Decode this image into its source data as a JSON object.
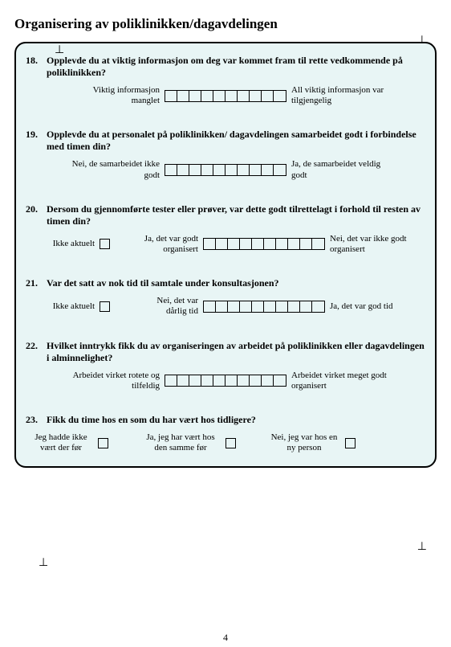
{
  "title": "Organisering av poliklinikken/dagavdelingen",
  "page_number": "4",
  "scale_cells": 10,
  "questions": {
    "q18": {
      "num": "18.",
      "text": "Opplevde du at viktig informasjon om deg var kommet fram til rette vedkommende på poliklinikken?",
      "left": "Viktig informasjon manglet",
      "right": "All viktig informasjon var tilgjengelig"
    },
    "q19": {
      "num": "19.",
      "text": "Opplevde du at personalet på poliklinikken/ dagavdelingen samarbeidet godt i forbindelse med timen din?",
      "left": "Nei, de samarbeidet ikke godt",
      "right": "Ja, de samarbeidet veldig godt"
    },
    "q20": {
      "num": "20.",
      "text": "Dersom du gjennomførte tester eller prøver, var dette godt tilrettelagt i forhold til resten av timen din?",
      "na": "Ikke aktuelt",
      "left": "Ja, det var godt organisert",
      "right": "Nei, det var  ikke godt organisert"
    },
    "q21": {
      "num": "21.",
      "text": "Var det satt av nok tid til samtale under konsultasjonen?",
      "na": "Ikke aktuelt",
      "left": "Nei, det var dårlig tid",
      "right": "Ja, det var god tid"
    },
    "q22": {
      "num": "22.",
      "text": "Hvilket inntrykk fikk du av organiseringen av arbeidet på poliklinikken eller dagavdelingen i alminnelighet?",
      "left": "Arbeidet virket rotete og tilfeldig",
      "right": "Arbeidet virket meget godt organisert"
    },
    "q23": {
      "num": "23.",
      "text": "Fikk du time hos en som du har vært hos tidligere?",
      "opt1": "Jeg hadde ikke vært der før",
      "opt2": "Ja, jeg har vært hos den samme før",
      "opt3": "Nei, jeg  var hos en ny person"
    }
  },
  "colors": {
    "box_bg": "#e8f5f5",
    "border": "#000000",
    "text": "#000000"
  }
}
